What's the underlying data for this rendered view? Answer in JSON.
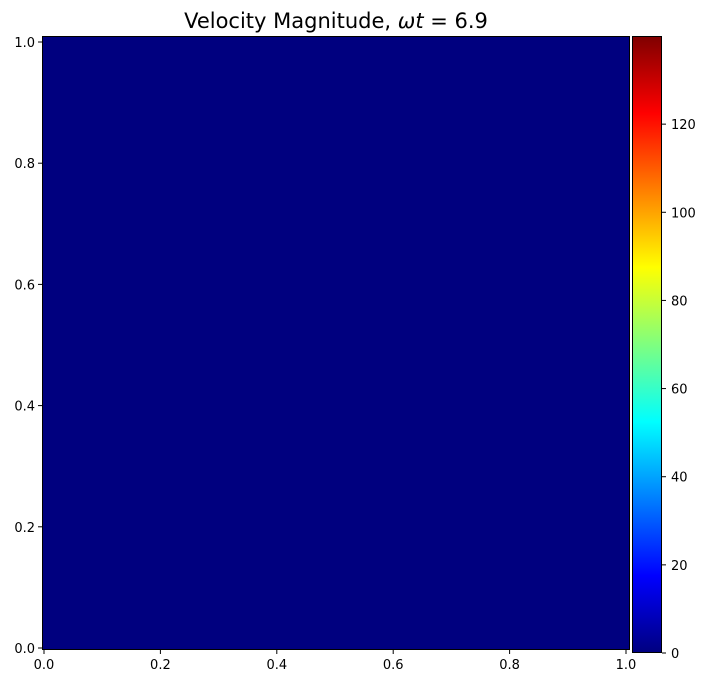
{
  "chart_data": {
    "type": "heatmap",
    "title_prefix": "Velocity Magnitude, ",
    "title_var": "ωt",
    "title_suffix": " = 6.9",
    "xlabel": "",
    "ylabel": "",
    "xlim": [
      0.0,
      1.0
    ],
    "ylim": [
      0.0,
      1.0
    ],
    "x_ticks": [
      0.0,
      0.2,
      0.4,
      0.6,
      0.8,
      1.0
    ],
    "x_tick_labels": [
      "0.0",
      "0.2",
      "0.4",
      "0.6",
      "0.8",
      "1.0"
    ],
    "y_ticks": [
      0.0,
      0.2,
      0.4,
      0.6,
      0.8,
      1.0
    ],
    "y_tick_labels": [
      "0.0",
      "0.2",
      "0.4",
      "0.6",
      "0.8",
      "1.0"
    ],
    "field": {
      "description": "uniform",
      "value": 0
    },
    "colorbar": {
      "colormap": "jet",
      "range": [
        0,
        140
      ],
      "ticks": [
        0,
        20,
        40,
        60,
        80,
        100,
        120
      ],
      "tick_labels": [
        "0",
        "20",
        "40",
        "60",
        "80",
        "100",
        "120"
      ]
    },
    "grid": false,
    "colors": {
      "field_color": "#00007f",
      "jet_stops": [
        "#00007f",
        "#0000ff",
        "#007fff",
        "#00ffff",
        "#7fff7f",
        "#ffff00",
        "#ff7f00",
        "#ff0000",
        "#7f0000"
      ]
    }
  }
}
